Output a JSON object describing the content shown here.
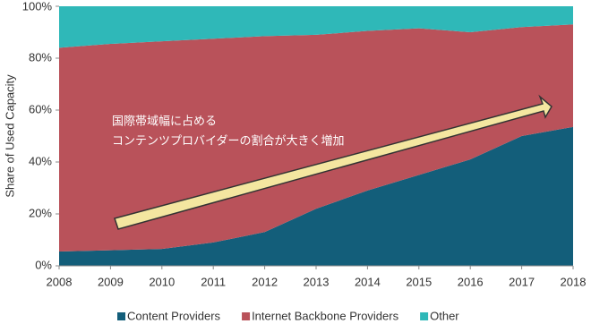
{
  "chart_data": {
    "type": "stacked_area",
    "y_label": "Share of Used Capacity",
    "annotations": [
      "国際帯域幅に占める",
      "コンテンツプロバイダーの割合が大きく増加"
    ],
    "x": [
      2008,
      2009,
      2010,
      2011,
      2012,
      2013,
      2014,
      2015,
      2016,
      2017,
      2018
    ],
    "xlim": [
      2008,
      2018
    ],
    "xticks": [
      2008,
      2009,
      2010,
      2011,
      2012,
      2013,
      2014,
      2015,
      2016,
      2017,
      2018
    ],
    "ylim": [
      0,
      100
    ],
    "yticks": [
      {
        "value": 0,
        "label": "0%"
      },
      {
        "value": 20,
        "label": "20%"
      },
      {
        "value": 40,
        "label": "40%"
      },
      {
        "value": 60,
        "label": "60%"
      },
      {
        "value": 80,
        "label": "80%"
      },
      {
        "value": 100,
        "label": "100%"
      }
    ],
    "legend": "bottom",
    "series": [
      {
        "name": "Content Providers",
        "color": "#135e7a",
        "values": [
          5.5,
          6,
          6.5,
          9,
          13,
          22,
          29,
          35,
          41,
          50,
          53.5
        ]
      },
      {
        "name": "Internet Backbone Providers",
        "color": "#b9525a",
        "values": [
          78.5,
          79.5,
          80,
          78.5,
          75.5,
          67,
          61.5,
          56.5,
          49,
          42,
          39.5
        ]
      },
      {
        "name": "Other",
        "color": "#2fb8b8",
        "values": [
          16,
          14.5,
          13.5,
          12.5,
          11.5,
          11,
          9.5,
          8.5,
          10,
          8,
          7
        ]
      }
    ]
  }
}
